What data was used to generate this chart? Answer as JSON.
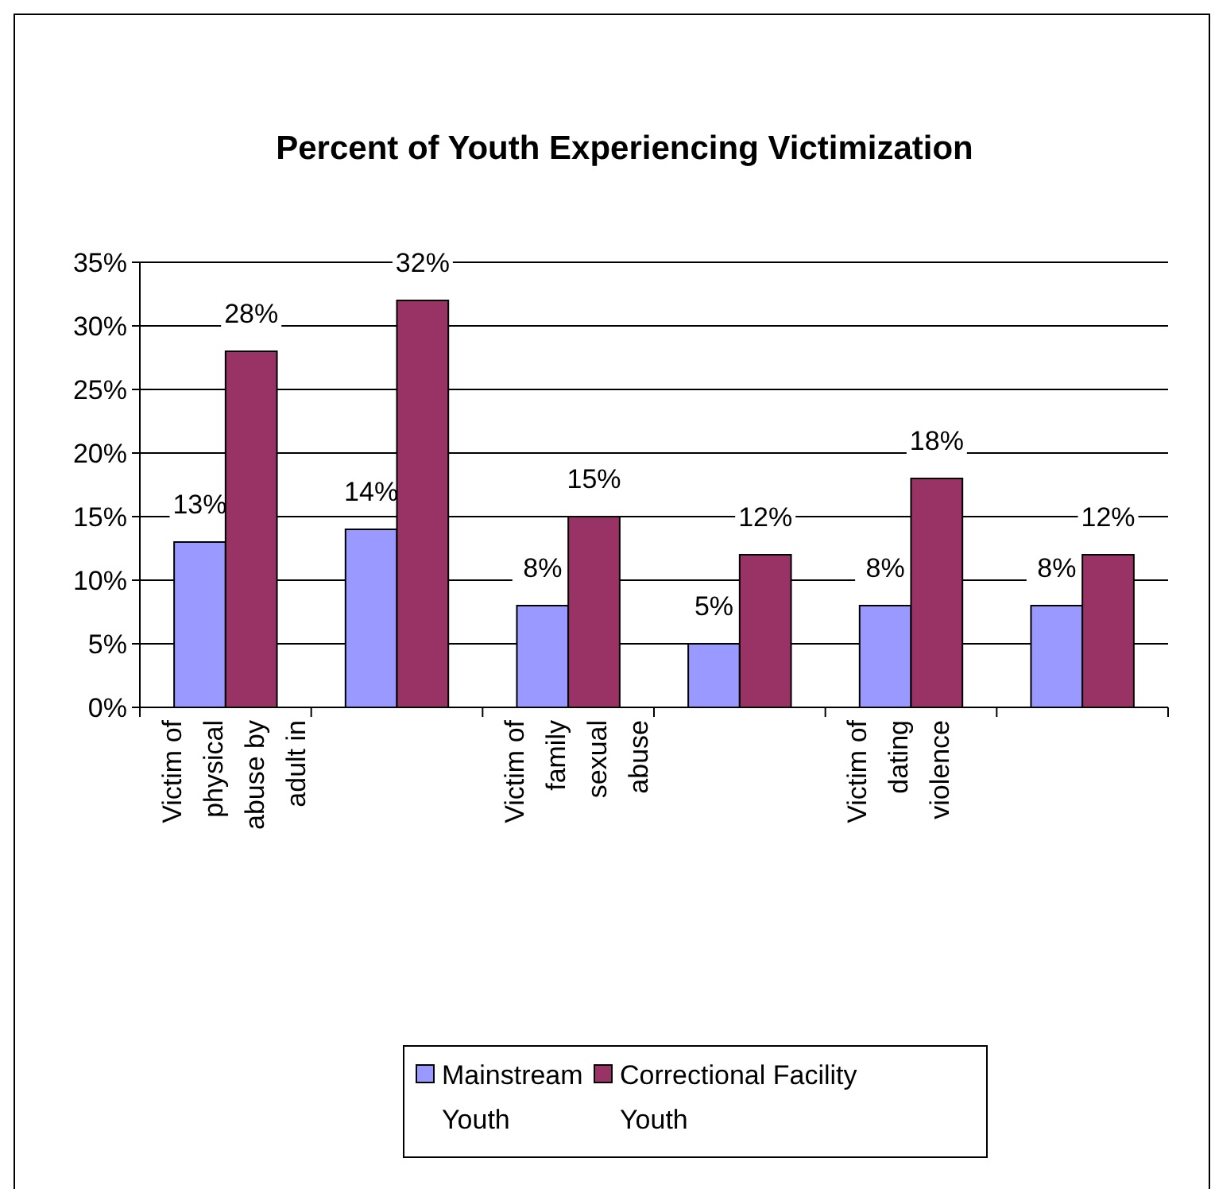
{
  "chart_data": {
    "type": "bar",
    "title": "Percent of Youth Experiencing Victimization",
    "categories": [
      "Victim of physical abuse by adult in",
      null,
      "Victim of family sexual abuse",
      null,
      "Victim of dating violence",
      null
    ],
    "series": [
      {
        "name": "Mainstream Youth",
        "color": "#9999ff",
        "values": [
          13,
          14,
          8,
          5,
          8,
          8
        ],
        "value_labels": [
          "13%",
          "14%",
          "8%",
          "5%",
          "8%",
          "8%"
        ]
      },
      {
        "name": "Correctional Facility Youth",
        "color": "#993366",
        "values": [
          28,
          32,
          15,
          12,
          18,
          12
        ],
        "value_labels": [
          "28%",
          "32%",
          "15%",
          "12%",
          "18%",
          "12%"
        ]
      }
    ],
    "ylim": [
      0,
      35
    ],
    "yticks": [
      {
        "value": 0,
        "label": "0%"
      },
      {
        "value": 5,
        "label": "5%"
      },
      {
        "value": 10,
        "label": "10%"
      },
      {
        "value": 15,
        "label": "15%"
      },
      {
        "value": 20,
        "label": "20%"
      },
      {
        "value": 25,
        "label": "25%"
      },
      {
        "value": 30,
        "label": "30%"
      },
      {
        "value": 35,
        "label": "35%"
      }
    ],
    "grid": "y",
    "legend": "bottom"
  }
}
